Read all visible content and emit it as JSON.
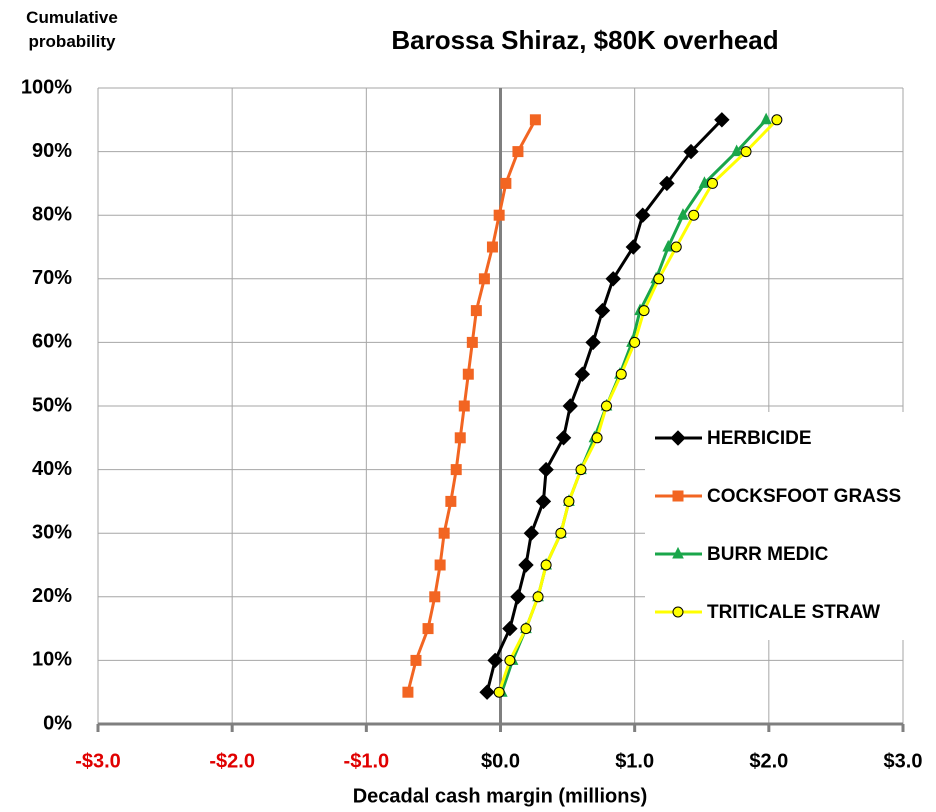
{
  "chart_data": {
    "type": "line",
    "title": "Barossa Shiraz,  $80K overhead",
    "y_label": "Cumulative probability",
    "x_label": "Decadal cash margin (millions)",
    "xlim": [
      -3,
      3
    ],
    "xticks": [
      {
        "value": -3,
        "label": "-$3.0"
      },
      {
        "value": -2,
        "label": "-$2.0"
      },
      {
        "value": -1,
        "label": "-$1.0"
      },
      {
        "value": 0,
        "label": "$0.0"
      },
      {
        "value": 1,
        "label": "$1.0"
      },
      {
        "value": 2,
        "label": "$2.0"
      },
      {
        "value": 3,
        "label": "$3.0"
      }
    ],
    "negative_tick_color": "#e00000",
    "ylim": [
      0,
      100
    ],
    "yticks": [
      {
        "value": 0,
        "label": "0%"
      },
      {
        "value": 10,
        "label": "10%"
      },
      {
        "value": 20,
        "label": "20%"
      },
      {
        "value": 30,
        "label": "30%"
      },
      {
        "value": 40,
        "label": "40%"
      },
      {
        "value": 50,
        "label": "50%"
      },
      {
        "value": 60,
        "label": "60%"
      },
      {
        "value": 70,
        "label": "70%"
      },
      {
        "value": 80,
        "label": "80%"
      },
      {
        "value": 90,
        "label": "90%"
      },
      {
        "value": 100,
        "label": "100%"
      }
    ],
    "grid": true,
    "legend": "right",
    "series": [
      {
        "name": "HERBICIDE",
        "color": "#000000",
        "marker": "diamond",
        "marker_fill": "#000000",
        "x": [
          -0.1,
          -0.04,
          0.07,
          0.13,
          0.19,
          0.23,
          0.32,
          0.34,
          0.47,
          0.52,
          0.61,
          0.69,
          0.76,
          0.84,
          0.99,
          1.06,
          1.24,
          1.42,
          1.65
        ],
        "values": [
          5,
          10,
          15,
          20,
          25,
          30,
          35,
          40,
          45,
          50,
          55,
          60,
          65,
          70,
          75,
          80,
          85,
          90,
          95
        ]
      },
      {
        "name": "COCKSFOOT GRASS",
        "color": "#f26522",
        "marker": "square",
        "marker_fill": "#f26522",
        "x": [
          -0.69,
          -0.63,
          -0.54,
          -0.49,
          -0.45,
          -0.42,
          -0.37,
          -0.33,
          -0.3,
          -0.27,
          -0.24,
          -0.21,
          -0.18,
          -0.12,
          -0.06,
          -0.01,
          0.04,
          0.13,
          0.26
        ],
        "values": [
          5,
          10,
          15,
          20,
          25,
          30,
          35,
          40,
          45,
          50,
          55,
          60,
          65,
          70,
          75,
          80,
          85,
          90,
          95
        ]
      },
      {
        "name": "BURR MEDIC",
        "color": "#1aa64a",
        "marker": "triangle",
        "marker_fill": "#1aa64a",
        "x": [
          0.01,
          0.09,
          0.19,
          0.28,
          0.34,
          0.45,
          0.51,
          0.6,
          0.7,
          0.79,
          0.89,
          0.98,
          1.04,
          1.16,
          1.25,
          1.36,
          1.52,
          1.76,
          1.98
        ],
        "values": [
          5,
          10,
          15,
          20,
          25,
          30,
          35,
          40,
          45,
          50,
          55,
          60,
          65,
          70,
          75,
          80,
          85,
          90,
          95
        ]
      },
      {
        "name": "TRITICALE STRAW",
        "color": "#ffff00",
        "marker": "circle",
        "marker_fill": "#ffff00",
        "x": [
          -0.01,
          0.07,
          0.19,
          0.28,
          0.34,
          0.45,
          0.51,
          0.6,
          0.72,
          0.79,
          0.9,
          1.0,
          1.07,
          1.18,
          1.31,
          1.44,
          1.58,
          1.83,
          2.06
        ],
        "values": [
          5,
          10,
          15,
          20,
          25,
          30,
          35,
          40,
          45,
          50,
          55,
          60,
          65,
          70,
          75,
          80,
          85,
          90,
          95
        ]
      }
    ]
  }
}
